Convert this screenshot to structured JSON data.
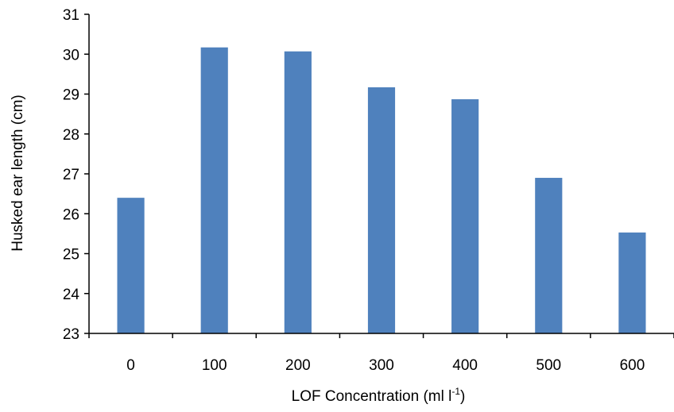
{
  "chart_data": {
    "type": "bar",
    "categories": [
      "0",
      "100",
      "200",
      "300",
      "400",
      "500",
      "600"
    ],
    "values": [
      26.4,
      30.17,
      30.07,
      29.17,
      28.87,
      26.9,
      25.53
    ],
    "xlabel": "LOF Concentration (ml l",
    "xlabel_superscript": "-1",
    "xlabel_suffix": ")",
    "ylabel": "Husked ear length (cm)",
    "ylim": [
      23,
      31
    ],
    "yticks": [
      "23",
      "24",
      "25",
      "26",
      "27",
      "28",
      "29",
      "30",
      "31"
    ],
    "grid": false,
    "bar_color": "#4f81bd",
    "axis_color": "#000000"
  }
}
